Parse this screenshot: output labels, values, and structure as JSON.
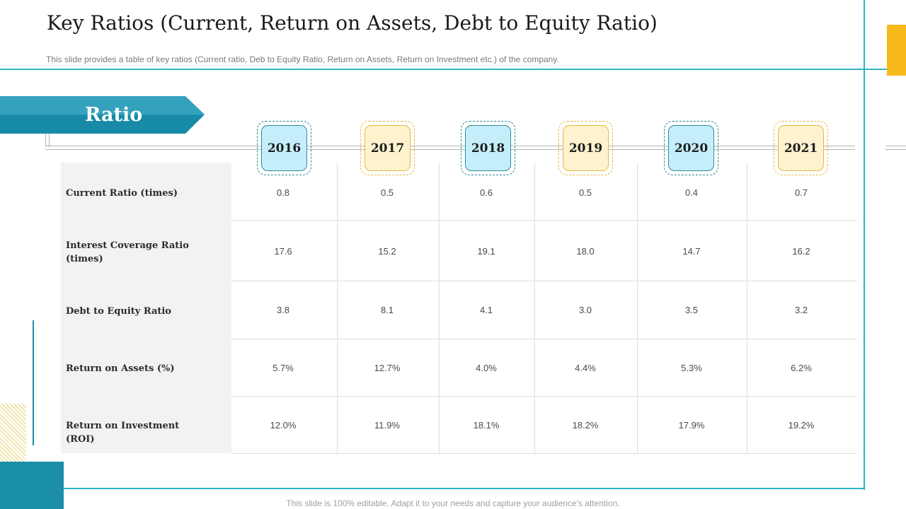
{
  "slide": {
    "title": "Key Ratios (Current, Return on Assets, Debt to Equity Ratio)",
    "subtitle": "This slide provides  a table of key ratios (Current  ratio, Deb to Equity Ratio, Return  on Assets, Return on Investment  etc.) of the company.",
    "footer": "This slide is 100% editable. Adapt it to your needs and capture your audience's attention."
  },
  "banner": {
    "label": "Ratio"
  },
  "table": {
    "years": [
      "2016",
      "2017",
      "2018",
      "2019",
      "2020",
      "2021"
    ],
    "rows": [
      {
        "label": "Current Ratio (times)",
        "values": [
          "0.8",
          "0.5",
          "0.6",
          "0.5",
          "0.4",
          "0.7"
        ]
      },
      {
        "label": "Interest Coverage Ratio (times)",
        "values": [
          "17.6",
          "15.2",
          "19.1",
          "18.0",
          "14.7",
          "16.2"
        ]
      },
      {
        "label": "Debt to Equity Ratio",
        "values": [
          "3.8",
          "8.1",
          "4.1",
          "3.0",
          "3.5",
          "3.2"
        ]
      },
      {
        "label": "Return on Assets (%)",
        "values": [
          "5.7%",
          "12.7%",
          "4.0%",
          "4.4%",
          "5.3%",
          "6.2%"
        ]
      },
      {
        "label": "Return on Investment (ROI)",
        "values": [
          "12.0%",
          "11.9%",
          "18.1%",
          "18.2%",
          "17.9%",
          "19.2%"
        ]
      }
    ]
  },
  "colors": {
    "teal": "#2bb5c1",
    "banner_light": "#34a1bd",
    "banner_dark": "#168aa7",
    "accent_yellow": "#f6b81a",
    "year_blue": "#c4effa",
    "year_gold": "#fff2cf"
  }
}
